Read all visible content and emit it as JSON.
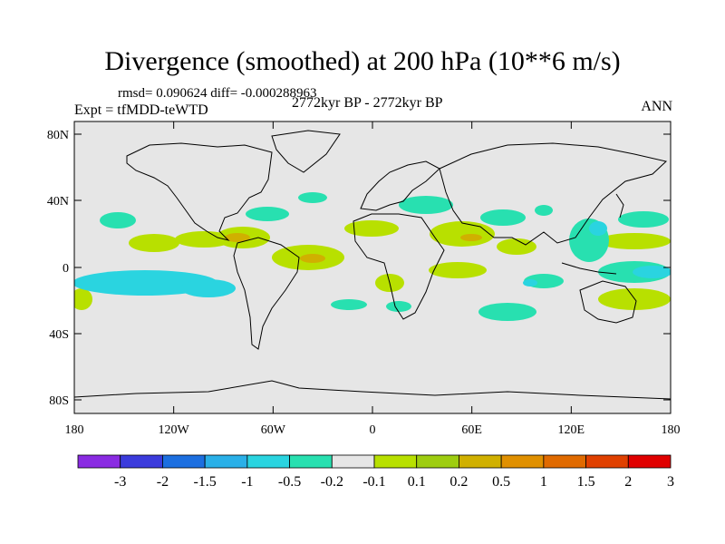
{
  "title": "Divergence (smoothed) at 200 hPa (10**6 m/s)",
  "stats": "rmsd= 0.090624 diff= -0.000288963",
  "experiment": "Expt = tfMDD-teWTD",
  "period": "2772kyr BP - 2772kyr BP",
  "season": "ANN",
  "x_ticks": [
    "180",
    "120W",
    "60W",
    "0",
    "60E",
    "120E",
    "180"
  ],
  "y_ticks": [
    "80N",
    "40N",
    "0",
    "40S",
    "80S"
  ],
  "colorbar": {
    "colors": [
      "#8a2be2",
      "#3b3bdc",
      "#1c6fe0",
      "#2ab0e8",
      "#2ad4e0",
      "#28e0b0",
      "#e6e6e6",
      "#b8e000",
      "#9ecd10",
      "#d0b000",
      "#e09000",
      "#e06a00",
      "#e04000",
      "#e00000"
    ],
    "labels": [
      "-3",
      "-2",
      "-1.5",
      "-1",
      "-0.5",
      "-0.2",
      "-0.1",
      "0.1",
      "0.2",
      "0.5",
      "1",
      "1.5",
      "2",
      "3"
    ]
  }
}
